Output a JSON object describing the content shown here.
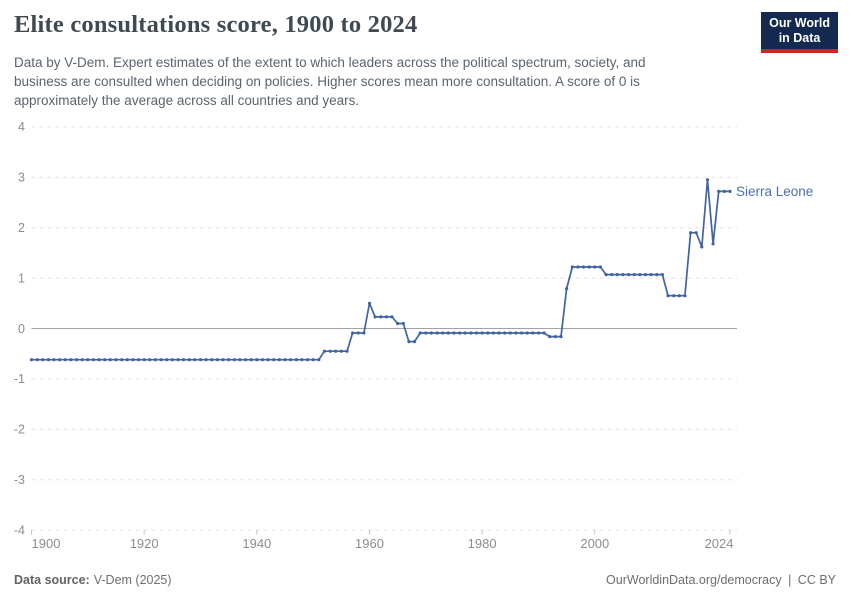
{
  "header": {
    "title": "Elite consultations score, 1900 to 2024",
    "subtitle_lines": [
      "Data by V-Dem. Expert estimates of the extent to which leaders across the political spectrum, society, and",
      "business are consulted when deciding on policies. Higher scores mean more consultation. A score of 0 is",
      "approximately the average across all countries and years."
    ],
    "logo": {
      "line1": "Our World",
      "line2": "in Data"
    }
  },
  "footer": {
    "source_label": "Data source:",
    "source_value": "V-Dem (2025)",
    "link_text": "OurWorldinData.org/democracy",
    "divider": "|",
    "license": "CC BY"
  },
  "colors": {
    "line": "#4063a3",
    "marker": "#4063a3",
    "entity_label": "#4d6fad",
    "grid": "#e0e0e0",
    "zero_line": "#a3a3a3",
    "tick": "#c4c4c4",
    "axis_text": "#8d8d8d",
    "logo_bg": "#14294f",
    "logo_red": "#cf242b"
  },
  "chart_data": {
    "type": "line",
    "title": "Elite consultations score, 1900 to 2024",
    "entity": "Sierra Leone",
    "xlabel": "",
    "ylabel": "",
    "xlim": [
      1900,
      2024
    ],
    "ylim": [
      -4,
      4
    ],
    "xticks": [
      1900,
      1920,
      1940,
      1960,
      1980,
      2000,
      2024
    ],
    "yticks": [
      4,
      3,
      2,
      1,
      0,
      -1,
      -2,
      -3,
      -4
    ],
    "grid": "dashed horizontal gridlines, solid line at zero",
    "legend_position": "label at end of line",
    "points": [
      [
        1900,
        -0.62
      ],
      [
        1901,
        -0.62
      ],
      [
        1902,
        -0.62
      ],
      [
        1903,
        -0.62
      ],
      [
        1904,
        -0.62
      ],
      [
        1905,
        -0.62
      ],
      [
        1906,
        -0.62
      ],
      [
        1907,
        -0.62
      ],
      [
        1908,
        -0.62
      ],
      [
        1909,
        -0.62
      ],
      [
        1910,
        -0.62
      ],
      [
        1911,
        -0.62
      ],
      [
        1912,
        -0.62
      ],
      [
        1913,
        -0.62
      ],
      [
        1914,
        -0.62
      ],
      [
        1915,
        -0.62
      ],
      [
        1916,
        -0.62
      ],
      [
        1917,
        -0.62
      ],
      [
        1918,
        -0.62
      ],
      [
        1919,
        -0.62
      ],
      [
        1920,
        -0.62
      ],
      [
        1921,
        -0.62
      ],
      [
        1922,
        -0.62
      ],
      [
        1923,
        -0.62
      ],
      [
        1924,
        -0.62
      ],
      [
        1925,
        -0.62
      ],
      [
        1926,
        -0.62
      ],
      [
        1927,
        -0.62
      ],
      [
        1928,
        -0.62
      ],
      [
        1929,
        -0.62
      ],
      [
        1930,
        -0.62
      ],
      [
        1931,
        -0.62
      ],
      [
        1932,
        -0.62
      ],
      [
        1933,
        -0.62
      ],
      [
        1934,
        -0.62
      ],
      [
        1935,
        -0.62
      ],
      [
        1936,
        -0.62
      ],
      [
        1937,
        -0.62
      ],
      [
        1938,
        -0.62
      ],
      [
        1939,
        -0.62
      ],
      [
        1940,
        -0.62
      ],
      [
        1941,
        -0.62
      ],
      [
        1942,
        -0.62
      ],
      [
        1943,
        -0.62
      ],
      [
        1944,
        -0.62
      ],
      [
        1945,
        -0.62
      ],
      [
        1946,
        -0.62
      ],
      [
        1947,
        -0.62
      ],
      [
        1948,
        -0.62
      ],
      [
        1949,
        -0.62
      ],
      [
        1950,
        -0.62
      ],
      [
        1951,
        -0.62
      ],
      [
        1952,
        -0.45
      ],
      [
        1953,
        -0.45
      ],
      [
        1954,
        -0.45
      ],
      [
        1955,
        -0.45
      ],
      [
        1956,
        -0.45
      ],
      [
        1957,
        -0.09
      ],
      [
        1958,
        -0.09
      ],
      [
        1959,
        -0.09
      ],
      [
        1960,
        0.5
      ],
      [
        1961,
        0.23
      ],
      [
        1962,
        0.23
      ],
      [
        1963,
        0.23
      ],
      [
        1964,
        0.23
      ],
      [
        1965,
        0.1
      ],
      [
        1966,
        0.1
      ],
      [
        1967,
        -0.26
      ],
      [
        1968,
        -0.26
      ],
      [
        1969,
        -0.09
      ],
      [
        1970,
        -0.09
      ],
      [
        1971,
        -0.09
      ],
      [
        1972,
        -0.09
      ],
      [
        1973,
        -0.09
      ],
      [
        1974,
        -0.09
      ],
      [
        1975,
        -0.09
      ],
      [
        1976,
        -0.09
      ],
      [
        1977,
        -0.09
      ],
      [
        1978,
        -0.09
      ],
      [
        1979,
        -0.09
      ],
      [
        1980,
        -0.09
      ],
      [
        1981,
        -0.09
      ],
      [
        1982,
        -0.09
      ],
      [
        1983,
        -0.09
      ],
      [
        1984,
        -0.09
      ],
      [
        1985,
        -0.09
      ],
      [
        1986,
        -0.09
      ],
      [
        1987,
        -0.09
      ],
      [
        1988,
        -0.09
      ],
      [
        1989,
        -0.09
      ],
      [
        1990,
        -0.09
      ],
      [
        1991,
        -0.09
      ],
      [
        1992,
        -0.16
      ],
      [
        1993,
        -0.16
      ],
      [
        1994,
        -0.16
      ],
      [
        1995,
        0.79
      ],
      [
        1996,
        1.22
      ],
      [
        1997,
        1.22
      ],
      [
        1998,
        1.22
      ],
      [
        1999,
        1.22
      ],
      [
        2000,
        1.22
      ],
      [
        2001,
        1.22
      ],
      [
        2002,
        1.07
      ],
      [
        2003,
        1.07
      ],
      [
        2004,
        1.07
      ],
      [
        2005,
        1.07
      ],
      [
        2006,
        1.07
      ],
      [
        2007,
        1.07
      ],
      [
        2008,
        1.07
      ],
      [
        2009,
        1.07
      ],
      [
        2010,
        1.07
      ],
      [
        2011,
        1.07
      ],
      [
        2012,
        1.07
      ],
      [
        2013,
        0.65
      ],
      [
        2014,
        0.65
      ],
      [
        2015,
        0.65
      ],
      [
        2016,
        0.65
      ],
      [
        2017,
        1.9
      ],
      [
        2018,
        1.9
      ],
      [
        2019,
        1.62
      ],
      [
        2020,
        2.95
      ],
      [
        2021,
        1.68
      ],
      [
        2022,
        2.72
      ],
      [
        2023,
        2.72
      ],
      [
        2024,
        2.72
      ]
    ]
  }
}
